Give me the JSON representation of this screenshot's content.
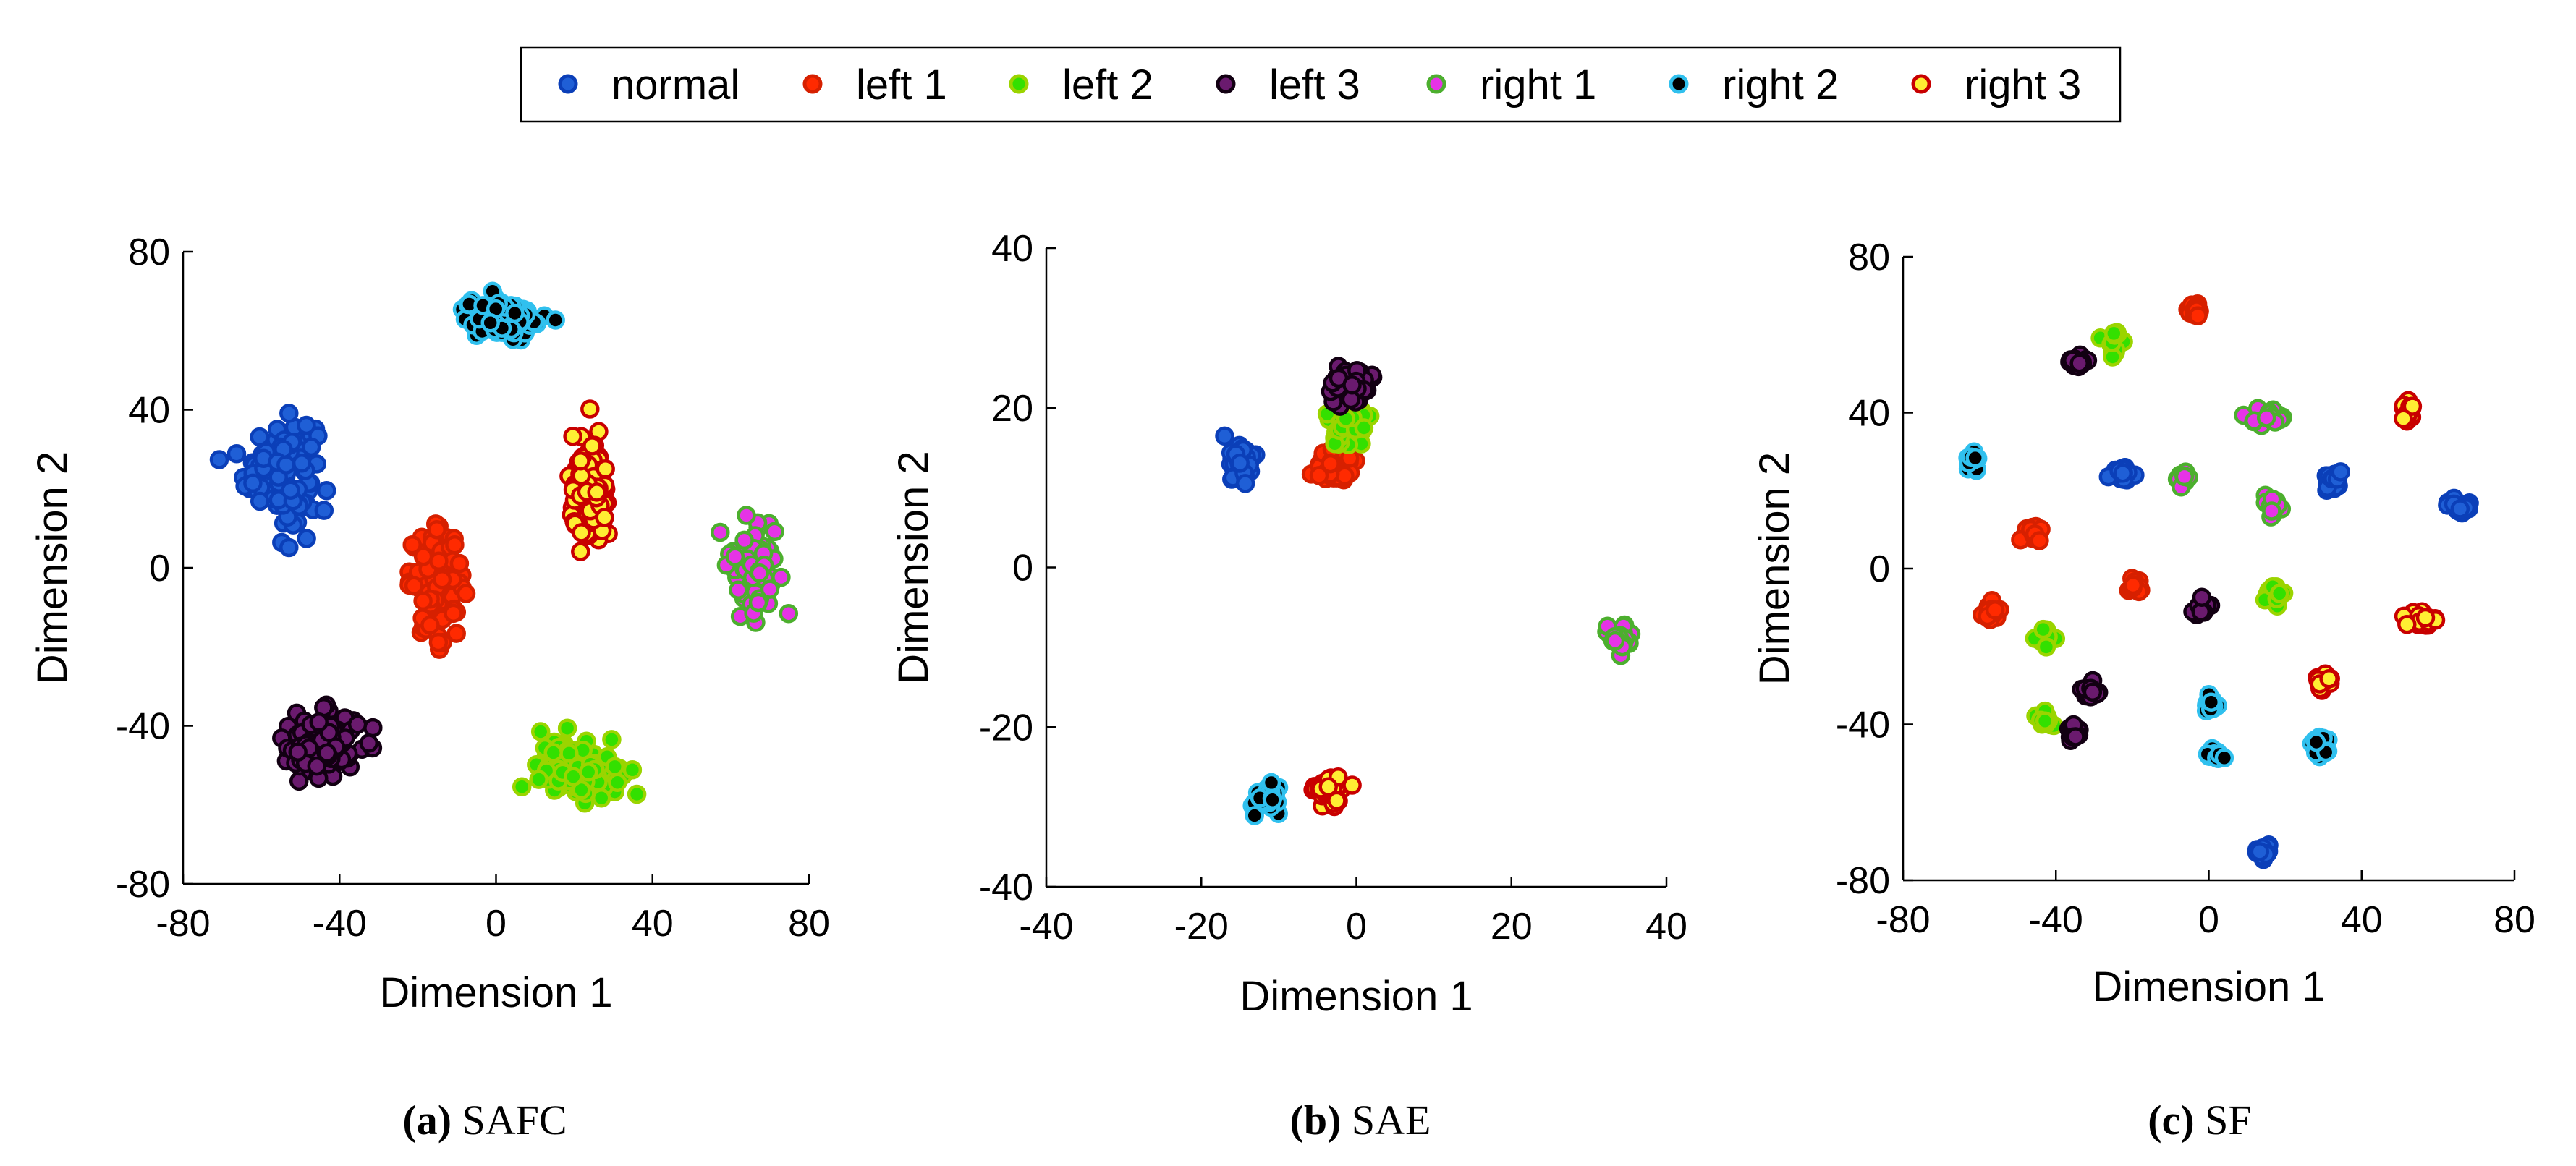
{
  "legend": {
    "entries": [
      {
        "label": "normal",
        "fill": "#1f5fd6",
        "edge": "#0b3fb8"
      },
      {
        "label": "left 1",
        "fill": "#ff2a00",
        "edge": "#d62000"
      },
      {
        "label": "left 2",
        "fill": "#33e000",
        "edge": "#9bd400"
      },
      {
        "label": "left 3",
        "fill": "#6a1a6e",
        "edge": "#120012"
      },
      {
        "label": "right 1",
        "fill": "#e633e6",
        "edge": "#4caf2e"
      },
      {
        "label": "right 2",
        "fill": "#000000",
        "edge": "#30c0ee"
      },
      {
        "label": "right 3",
        "fill": "#ffee33",
        "edge": "#c80000"
      }
    ]
  },
  "chart_data": [
    {
      "type": "scatter",
      "panel": "a",
      "caption_letter": "(a)",
      "caption_text": " SAFC",
      "xlabel": "Dimension 1",
      "ylabel": "Dimension 2",
      "xlim": [
        -80,
        80
      ],
      "ylim": [
        -80,
        80
      ],
      "xticks": [
        -80,
        -40,
        0,
        40,
        80
      ],
      "yticks": [
        -80,
        -40,
        0,
        40,
        80
      ],
      "xtick_labels": [
        "-80",
        "-40",
        "0",
        "40",
        "80"
      ],
      "ytick_labels": [
        "-80",
        "-40",
        "0",
        "40",
        "80"
      ],
      "clusters": [
        {
          "class": "normal",
          "cx": -55,
          "cy": 25,
          "sx": 4.5,
          "sy": 6.5,
          "n": 130
        },
        {
          "class": "left 1",
          "cx": -15,
          "cy": -4,
          "sx": 3.5,
          "sy": 6.5,
          "n": 110
        },
        {
          "class": "left 2",
          "cx": 21,
          "cy": -51,
          "sx": 5,
          "sy": 3.5,
          "n": 120
        },
        {
          "class": "left 3",
          "cx": -45,
          "cy": -45,
          "sx": 5,
          "sy": 4,
          "n": 120
        },
        {
          "class": "right 1",
          "cx": 66,
          "cy": 1,
          "sx": 3,
          "sy": 6,
          "n": 90
        },
        {
          "class": "right 2",
          "cx": 2,
          "cy": 63,
          "sx": 5,
          "sy": 2.5,
          "n": 110
        },
        {
          "class": "right 3",
          "cx": 24,
          "cy": 18,
          "sx": 2.5,
          "sy": 7,
          "n": 100
        }
      ]
    },
    {
      "type": "scatter",
      "panel": "b",
      "caption_letter": "(b)",
      "caption_text": " SAE",
      "xlabel": "Dimension 1",
      "ylabel": "Dimension 2",
      "xlim": [
        -40,
        40
      ],
      "ylim": [
        -40,
        40
      ],
      "xticks": [
        -40,
        -20,
        0,
        20,
        40
      ],
      "yticks": [
        -40,
        -20,
        0,
        20,
        40
      ],
      "xtick_labels": [
        "-40",
        "-20",
        "0",
        "20",
        "40"
      ],
      "ytick_labels": [
        "-40",
        "-20",
        "0",
        "20",
        "40"
      ],
      "clusters": [
        {
          "class": "normal",
          "cx": -15,
          "cy": 13,
          "sx": 0.9,
          "sy": 1.2,
          "n": 40
        },
        {
          "class": "left 1",
          "cx": -2.5,
          "cy": 12.5,
          "sx": 1.2,
          "sy": 1.0,
          "n": 50
        },
        {
          "class": "left 2",
          "cx": -1,
          "cy": 18,
          "sx": 1.2,
          "sy": 1.6,
          "n": 50
        },
        {
          "class": "left 3",
          "cx": -1,
          "cy": 23,
          "sx": 1.3,
          "sy": 1.2,
          "n": 50
        },
        {
          "class": "right 1",
          "cx": 34,
          "cy": -9,
          "sx": 0.8,
          "sy": 0.9,
          "n": 35
        },
        {
          "class": "right 2",
          "cx": -11.5,
          "cy": -28.5,
          "sx": 0.9,
          "sy": 0.9,
          "n": 40
        },
        {
          "class": "right 3",
          "cx": -3.5,
          "cy": -28,
          "sx": 0.9,
          "sy": 0.9,
          "n": 40
        }
      ]
    },
    {
      "type": "scatter",
      "panel": "c",
      "caption_letter": "(c)",
      "caption_text": " SF",
      "xlabel": "Dimension 1",
      "ylabel": "Dimension 2",
      "xlim": [
        -80,
        80
      ],
      "ylim": [
        -80,
        80
      ],
      "xticks": [
        -80,
        -40,
        0,
        40,
        80
      ],
      "yticks": [
        -80,
        -40,
        0,
        40,
        80
      ],
      "xtick_labels": [
        "-80",
        "-40",
        "0",
        "40",
        "80"
      ],
      "ytick_labels": [
        "-80",
        "-40",
        "0",
        "40",
        "80"
      ],
      "clusters": [
        {
          "class": "normal",
          "cx": -22,
          "cy": 24,
          "sx": 1.2,
          "sy": 1.2,
          "n": 18
        },
        {
          "class": "normal",
          "cx": 33,
          "cy": 22,
          "sx": 1.2,
          "sy": 1.2,
          "n": 18
        },
        {
          "class": "normal",
          "cx": 66,
          "cy": 16,
          "sx": 1.3,
          "sy": 1.0,
          "n": 18
        },
        {
          "class": "normal",
          "cx": 14,
          "cy": -73,
          "sx": 1.3,
          "sy": 0.9,
          "n": 18
        },
        {
          "class": "left 1",
          "cx": -4,
          "cy": 66,
          "sx": 1.4,
          "sy": 1.0,
          "n": 18
        },
        {
          "class": "left 1",
          "cx": -46,
          "cy": 9,
          "sx": 1.2,
          "sy": 1.2,
          "n": 18
        },
        {
          "class": "left 1",
          "cx": -19,
          "cy": -5,
          "sx": 1.2,
          "sy": 1.0,
          "n": 18
        },
        {
          "class": "left 1",
          "cx": -57,
          "cy": -11,
          "sx": 1.0,
          "sy": 1.4,
          "n": 18
        },
        {
          "class": "left 2",
          "cx": -25,
          "cy": 58,
          "sx": 1.0,
          "sy": 1.5,
          "n": 18
        },
        {
          "class": "left 2",
          "cx": 17,
          "cy": -7,
          "sx": 1.0,
          "sy": 1.2,
          "n": 18
        },
        {
          "class": "left 2",
          "cx": -43,
          "cy": -18,
          "sx": 1.0,
          "sy": 1.2,
          "n": 18
        },
        {
          "class": "left 2",
          "cx": -43,
          "cy": -39,
          "sx": 1.2,
          "sy": 1.2,
          "n": 18
        },
        {
          "class": "left 3",
          "cx": -34,
          "cy": 53,
          "sx": 1.4,
          "sy": 1.0,
          "n": 18
        },
        {
          "class": "left 3",
          "cx": -2,
          "cy": -10,
          "sx": 1.0,
          "sy": 1.2,
          "n": 18
        },
        {
          "class": "left 3",
          "cx": -31,
          "cy": -32,
          "sx": 1.2,
          "sy": 1.2,
          "n": 18
        },
        {
          "class": "left 3",
          "cx": -35,
          "cy": -42,
          "sx": 1.0,
          "sy": 1.4,
          "n": 18
        },
        {
          "class": "right 1",
          "cx": 15,
          "cy": 39,
          "sx": 2.4,
          "sy": 1.2,
          "n": 25
        },
        {
          "class": "right 1",
          "cx": -7,
          "cy": 23,
          "sx": 1.0,
          "sy": 1.0,
          "n": 18
        },
        {
          "class": "right 1",
          "cx": 17,
          "cy": 16,
          "sx": 1.0,
          "sy": 1.2,
          "n": 18
        },
        {
          "class": "right 2",
          "cx": -62,
          "cy": 28,
          "sx": 1.0,
          "sy": 1.2,
          "n": 18
        },
        {
          "class": "right 2",
          "cx": 1,
          "cy": -35,
          "sx": 1.0,
          "sy": 1.0,
          "n": 18
        },
        {
          "class": "right 2",
          "cx": 2,
          "cy": -48,
          "sx": 1.0,
          "sy": 1.2,
          "n": 18
        },
        {
          "class": "right 2",
          "cx": 30,
          "cy": -45,
          "sx": 1.2,
          "sy": 1.2,
          "n": 18
        },
        {
          "class": "right 3",
          "cx": 52,
          "cy": 40,
          "sx": 0.8,
          "sy": 1.6,
          "n": 18
        },
        {
          "class": "right 3",
          "cx": 55,
          "cy": -13,
          "sx": 2.2,
          "sy": 1.3,
          "n": 24
        },
        {
          "class": "right 3",
          "cx": 30,
          "cy": -29,
          "sx": 1.2,
          "sy": 1.0,
          "n": 18
        }
      ]
    }
  ]
}
